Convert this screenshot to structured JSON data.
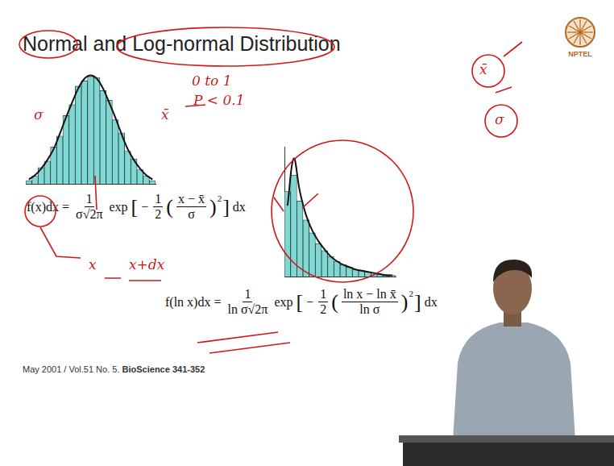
{
  "slide": {
    "title": "Normal and Log-normal Distribution",
    "logo_text": "NPTEL",
    "formula_normal": {
      "lhs": "f(x)dx =",
      "coef_num": "1",
      "coef_den": "σ√2π",
      "func": "exp",
      "brackets": [
        "[",
        "(",
        ")",
        "]"
      ],
      "minus": "−",
      "half_num": "1",
      "half_den": "2",
      "inner_num": "x − x̄",
      "inner_den": "σ",
      "power": "2",
      "tail": "dx"
    },
    "formula_lognormal": {
      "lhs": "f(ln x)dx =",
      "coef_num": "1",
      "coef_den": "ln σ√2π",
      "func": "exp",
      "brackets": [
        "[",
        "(",
        ")",
        "]"
      ],
      "minus": "−",
      "half_num": "1",
      "half_den": "2",
      "inner_num": "ln x − ln x̄",
      "inner_den": "ln σ",
      "power": "2",
      "tail": "dx"
    },
    "citation": {
      "text": "May 2001 / Vol.51 No. 5. ",
      "bold": "BioScience 341-352"
    },
    "annotations": [
      "σ",
      "x̄",
      "0 to 1",
      "P < 0.1",
      "x",
      "x+dx",
      "x̄",
      "σ"
    ]
  },
  "chart_data": [
    {
      "type": "bar",
      "categories": [
        null,
        null,
        null,
        null,
        null,
        null,
        null,
        null,
        null,
        null,
        null,
        null,
        null,
        null,
        null,
        null,
        null,
        null,
        null,
        null,
        null
      ],
      "series": [
        {
          "type": "bar",
          "color": "#7fd8d4",
          "values": [
            3,
            7,
            15,
            21,
            34,
            44,
            63,
            73,
            90,
            95,
            99,
            98,
            86,
            77,
            59,
            47,
            30,
            23,
            13,
            7,
            3
          ]
        },
        {
          "type": "line",
          "color": "#111111",
          "values": [
            4,
            8,
            14,
            22,
            32,
            46,
            61,
            75,
            88,
            97,
            100,
            97,
            88,
            75,
            61,
            46,
            32,
            22,
            14,
            8,
            4
          ]
        }
      ],
      "ylim": [
        0,
        110
      ],
      "grid": false,
      "tick_labels": false
    },
    {
      "type": "bar",
      "categories": [
        null,
        null,
        null,
        null,
        null,
        null,
        null,
        null,
        null,
        null,
        null,
        null,
        null,
        null,
        null,
        null,
        null,
        null
      ],
      "series": [
        {
          "type": "bar",
          "color": "#7fd8d4",
          "values": [
            72,
            86,
            64,
            48,
            37,
            28,
            22,
            17,
            13,
            10,
            8,
            6,
            5,
            4,
            3,
            2,
            2,
            1
          ]
        },
        {
          "type": "line",
          "color": "#111111",
          "values": [
            60,
            100,
            72,
            52,
            39,
            30,
            23,
            17,
            13,
            10,
            8,
            6,
            5,
            4,
            3,
            2,
            1,
            1
          ]
        }
      ],
      "ylim": [
        0,
        110
      ],
      "grid": false,
      "tick_labels": false
    }
  ]
}
